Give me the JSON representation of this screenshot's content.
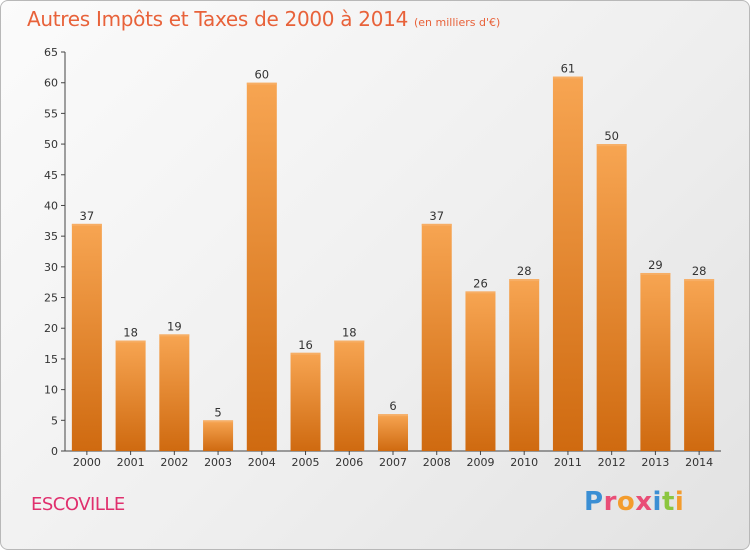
{
  "title": "Autres Impôts et Taxes de 2000 à 2014",
  "unit": "(en milliers d'€)",
  "place": "ESCOVILLE",
  "brand": {
    "text": "Proxiti",
    "letter_colors": [
      "#3b8fd4",
      "#e94e77",
      "#f39c2d",
      "#e94e77",
      "#3b8fd4",
      "#8cc63f",
      "#f39c2d"
    ]
  },
  "colors": {
    "title": "#e8623a",
    "place": "#e0306e",
    "bar_top": "#f7a552",
    "bar_bottom": "#cf6a10"
  },
  "chart_data": {
    "type": "bar",
    "categories": [
      "2000",
      "2001",
      "2002",
      "2003",
      "2004",
      "2005",
      "2006",
      "2007",
      "2008",
      "2009",
      "2010",
      "2011",
      "2012",
      "2013",
      "2014"
    ],
    "values": [
      37,
      18,
      19,
      5,
      60,
      16,
      18,
      6,
      37,
      26,
      28,
      61,
      50,
      29,
      28
    ],
    "ylim": [
      0,
      65
    ],
    "yticks": [
      0,
      5,
      10,
      15,
      20,
      25,
      30,
      35,
      40,
      45,
      50,
      55,
      60,
      65
    ],
    "grid": false,
    "legend": "none"
  }
}
